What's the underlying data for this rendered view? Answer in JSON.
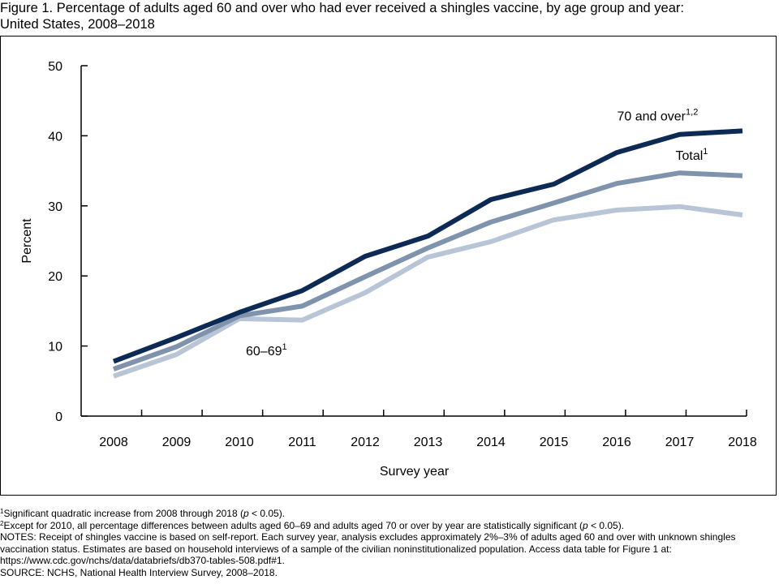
{
  "figure": {
    "title_line1": "Figure 1. Percentage of adults aged 60 and over who had ever received a shingles vaccine, by age group and year:",
    "title_line2": "United States, 2008–2018"
  },
  "chart_data": {
    "type": "line",
    "title": "Percentage of adults aged 60 and over who had ever received a shingles vaccine, by age group and year: United States, 2008–2018",
    "xlabel": "Survey year",
    "ylabel": "Percent",
    "ylim": [
      0,
      50
    ],
    "yticks": [
      "0",
      "10",
      "20",
      "30",
      "40",
      "50"
    ],
    "categories": [
      "2008",
      "2009",
      "2010",
      "2011",
      "2012",
      "2013",
      "2014",
      "2015",
      "2016",
      "2017",
      "2018"
    ],
    "grid": false,
    "series": [
      {
        "name": "70 and over",
        "label": "70 and over",
        "sup": "1,2",
        "color": "#0d2a55",
        "values": [
          7.8,
          11.2,
          14.8,
          17.9,
          22.8,
          25.7,
          30.9,
          33.1,
          37.6,
          40.2,
          40.7
        ]
      },
      {
        "name": "Total",
        "label": "Total",
        "sup": "1",
        "color": "#7f93ad",
        "values": [
          6.7,
          9.9,
          14.3,
          15.7,
          19.9,
          24.0,
          27.7,
          30.4,
          33.2,
          34.7,
          34.3
        ]
      },
      {
        "name": "60–69",
        "label": "60–69",
        "sup": "1",
        "color": "#b8c5d6",
        "values": [
          5.7,
          8.8,
          13.9,
          13.7,
          17.6,
          22.7,
          24.9,
          28.0,
          29.4,
          29.9,
          28.7
        ]
      }
    ]
  },
  "footnotes": {
    "fn1_mark": "1",
    "fn1_text": "Significant quadratic increase from 2008 through 2018 (",
    "fn1_p": "p",
    "fn1_end": " < 0.05).",
    "fn2_mark": "2",
    "fn2_text": "Except for 2010, all percentage differences between adults aged 60–69 and adults aged 70 or over by year are statistically significant (",
    "fn2_p": "p",
    "fn2_end": " < 0.05).",
    "notes": "NOTES: Receipt of shingles vaccine is based on self-report. Each survey year, analysis excludes approximately 2%–3% of adults aged 60 and over with unknown shingles vaccination status. Estimates are based on household interviews of a sample of the civilian noninstitutionalized population. Access data table for Figure 1 at: https://www.cdc.gov/nchs/data/databriefs/db370-tables-508.pdf#1.",
    "source": "SOURCE: NCHS, National Health Interview Survey, 2008–2018."
  }
}
